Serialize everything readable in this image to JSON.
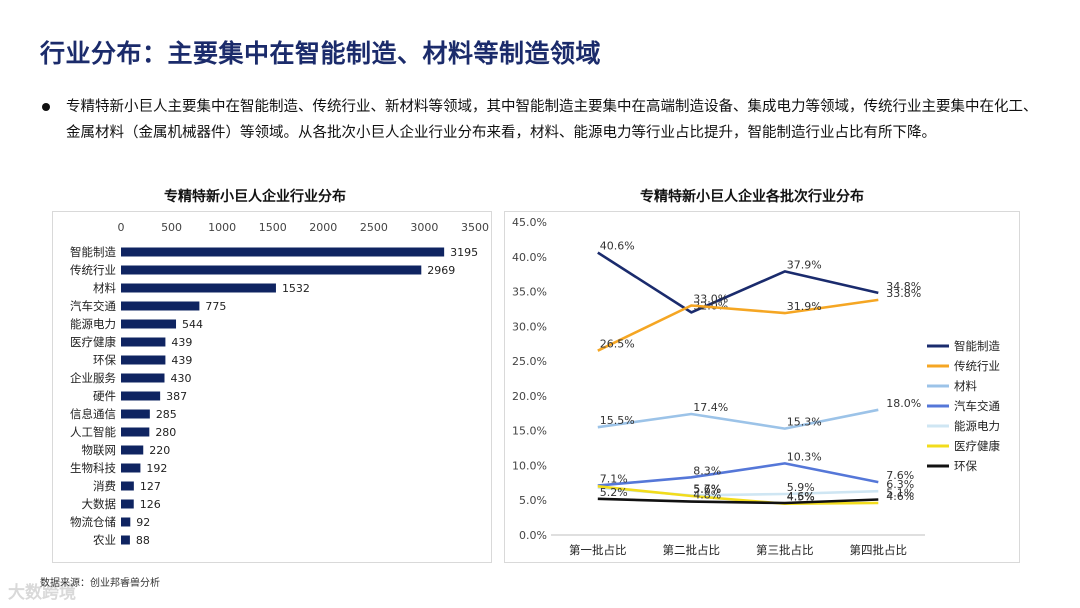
{
  "page": {
    "title": "行业分布：主要集中在智能制造、材料等制造领域",
    "bullet": "专精特新小巨人主要集中在智能制造、传统行业、新材料等领域，其中智能制造主要集中在高端制造设备、集成电力等领域，传统行业主要集中在化工、金属材料（金属机械器件）等领域。从各批次小巨人企业行业分布来看，材料、能源电力等行业占比提升，智能制造行业占比有所下降。",
    "source": "数据来源：创业邦睿兽分析",
    "watermark": "大数跨境"
  },
  "chart_data": [
    {
      "type": "bar",
      "orientation": "horizontal",
      "title": "专精特新小巨人企业行业分布",
      "categories": [
        "智能制造",
        "传统行业",
        "材料",
        "汽车交通",
        "能源电力",
        "医疗健康",
        "环保",
        "企业服务",
        "硬件",
        "信息通信",
        "人工智能",
        "物联网",
        "生物科技",
        "消费",
        "大数据",
        "物流仓储",
        "农业"
      ],
      "values": [
        3195,
        2969,
        1532,
        775,
        544,
        439,
        439,
        430,
        387,
        285,
        280,
        220,
        192,
        127,
        126,
        92,
        88
      ],
      "xlim": [
        0,
        3500
      ],
      "xticks": [
        0,
        500,
        1000,
        1500,
        2000,
        2500,
        3000,
        3500
      ],
      "color": "#0f2461"
    },
    {
      "type": "line",
      "title": "专精特新小巨人企业各批次行业分布",
      "categories": [
        "第一批占比",
        "第二批占比",
        "第三批占比",
        "第四批占比"
      ],
      "ylim": [
        0,
        45
      ],
      "yticks": [
        "0.0%",
        "5.0%",
        "10.0%",
        "15.0%",
        "20.0%",
        "25.0%",
        "30.0%",
        "35.0%",
        "40.0%",
        "45.0%"
      ],
      "series": [
        {
          "name": "智能制造",
          "color": "#1a2b6d",
          "values": [
            40.6,
            32.0,
            37.9,
            34.8
          ],
          "labels": [
            "40.6%",
            "32.0%",
            "37.9%",
            "34.8%"
          ]
        },
        {
          "name": "传统行业",
          "color": "#f5a623",
          "values": [
            26.5,
            33.0,
            31.9,
            33.8
          ],
          "labels": [
            "26.5%",
            "33.0%",
            "31.9%",
            "33.8%"
          ]
        },
        {
          "name": "材料",
          "color": "#9cc3e8",
          "values": [
            15.5,
            17.4,
            15.3,
            18.0
          ],
          "labels": [
            "15.5%",
            "17.4%",
            "15.3%",
            "18.0%"
          ]
        },
        {
          "name": "汽车交通",
          "color": "#5577d8",
          "values": [
            7.1,
            8.3,
            10.3,
            7.6
          ],
          "labels": [
            "7.1%",
            "8.3%",
            "10.3%",
            "7.6%"
          ]
        },
        {
          "name": "能源电力",
          "color": "#cfe6f3",
          "values": [
            6.8,
            5.7,
            5.9,
            6.3
          ],
          "labels": [
            "",
            "5.7%",
            "5.9%",
            "6.3%"
          ]
        },
        {
          "name": "医疗健康",
          "color": "#f2dc1c",
          "values": [
            7.0,
            5.6,
            4.5,
            4.6
          ],
          "labels": [
            "",
            "5.6%",
            "4.5%",
            "4.6%"
          ]
        },
        {
          "name": "环保",
          "color": "#111111",
          "values": [
            5.2,
            4.8,
            4.6,
            5.1
          ],
          "labels": [
            "5.2%",
            "4.8%",
            "4.6%",
            "5.1%"
          ]
        }
      ]
    }
  ]
}
